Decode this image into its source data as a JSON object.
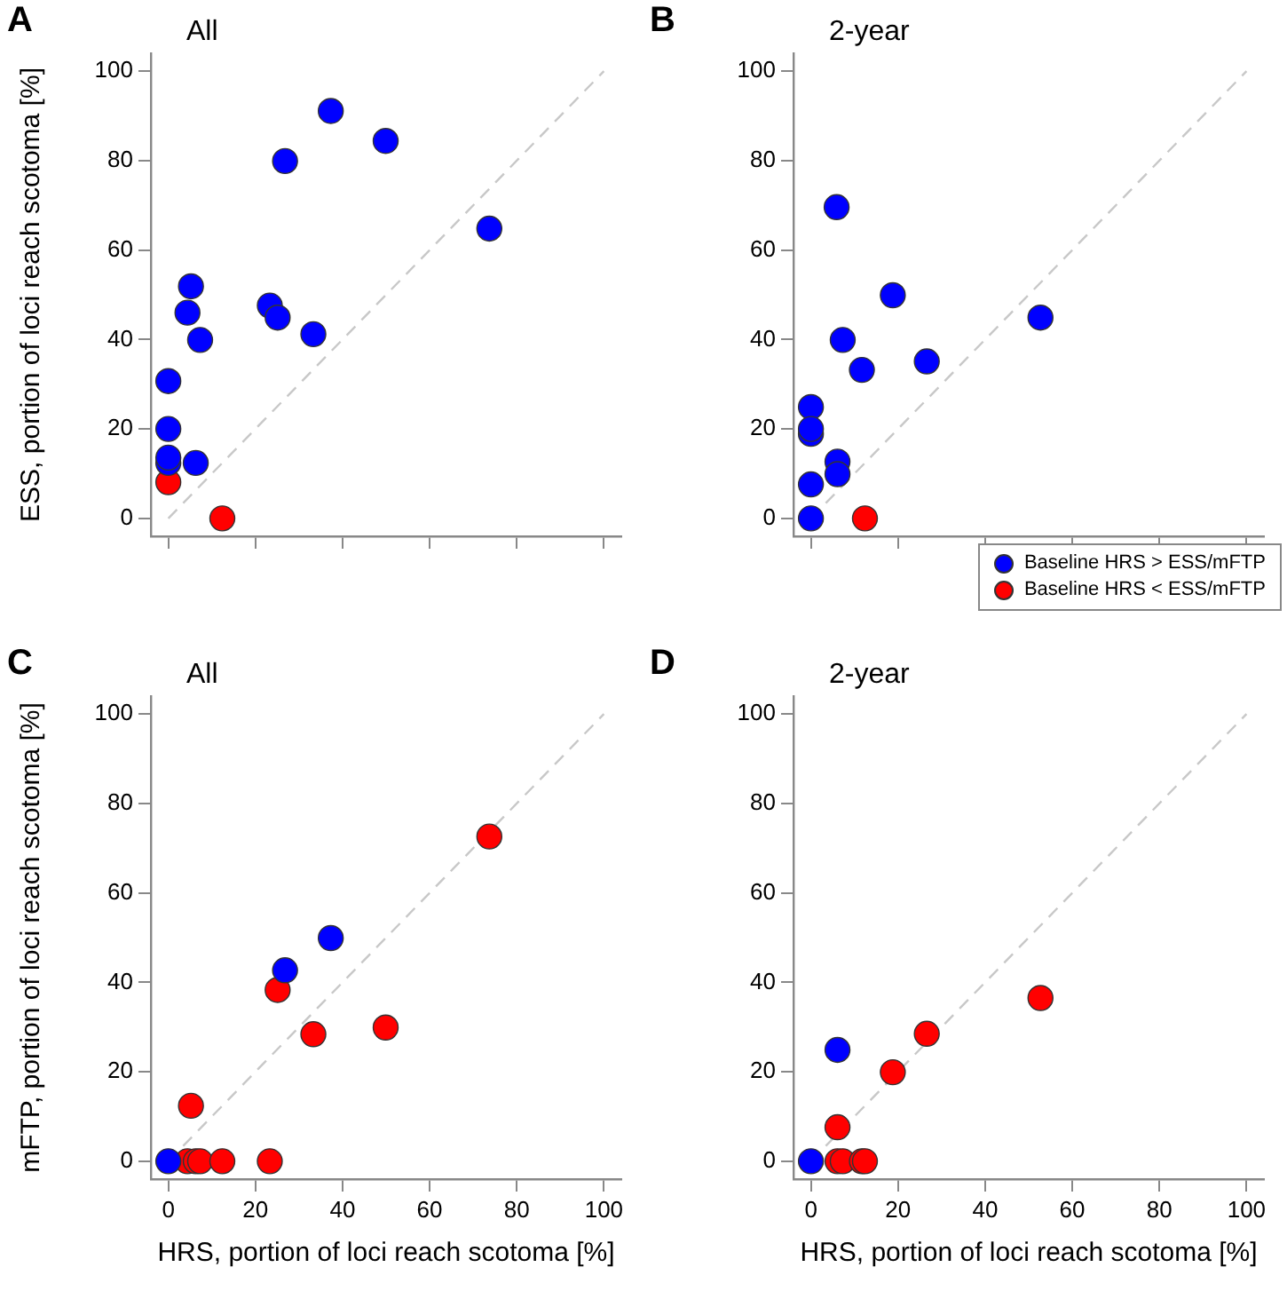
{
  "chart_data": [
    {
      "type": "scatter",
      "title": "All",
      "annotations": [
        "A"
      ],
      "ylabel": "ESS, portion of loci reach scotoma [%]",
      "xlim": [
        -4,
        104
      ],
      "ylim": [
        -4,
        104
      ],
      "xticks": [
        0,
        20,
        40,
        60,
        80,
        100
      ],
      "yticks": [
        0,
        20,
        40,
        60,
        80,
        100
      ],
      "tick_labels": "y",
      "marker": "circle",
      "grid": false,
      "series": [
        {
          "color": "#0000ff",
          "x": [
            37.3,
            49.9,
            26.8,
            73.7,
            5.2,
            4.4,
            7.3,
            23.3,
            25.1,
            33.3,
            0,
            0,
            0,
            0,
            6.3
          ],
          "values": [
            91.1,
            84.4,
            79.9,
            64.8,
            51.9,
            46,
            39.9,
            47.6,
            44.9,
            41.2,
            30.7,
            20,
            12.4,
            13.6,
            12.4
          ]
        },
        {
          "color": "#ff0000",
          "x": [
            0,
            12.4
          ],
          "values": [
            8.1,
            0
          ]
        },
        {
          "type": "line",
          "color": "#c8c8c8",
          "line_style": "dashed",
          "marker": "none",
          "x": [
            0,
            100
          ],
          "values": [
            0,
            100
          ]
        }
      ]
    },
    {
      "type": "scatter",
      "title": "2-year",
      "annotations": [
        "B"
      ],
      "xlim": [
        -4,
        104
      ],
      "ylim": [
        -4,
        104
      ],
      "xticks": [
        0,
        20,
        40,
        60,
        80,
        100
      ],
      "yticks": [
        0,
        20,
        40,
        60,
        80,
        100
      ],
      "tick_labels": "y",
      "marker": "circle",
      "grid": false,
      "legend": "bottom right",
      "series": [
        {
          "name": "Baseline HRS > ESS/mFTP",
          "color": "#0000ff",
          "x": [
            5.9,
            18.8,
            52.7,
            7.3,
            11.7,
            26.6,
            0,
            0,
            0,
            6.1,
            6.1,
            0,
            0
          ],
          "values": [
            69.6,
            49.9,
            44.9,
            39.9,
            33.2,
            35.1,
            24.9,
            18.9,
            20,
            12.7,
            9.9,
            7.6,
            0
          ]
        },
        {
          "name": "Baseline HRS < ESS/mFTP",
          "color": "#ff0000",
          "x": [
            12.4
          ],
          "values": [
            0
          ]
        },
        {
          "type": "line",
          "color": "#c8c8c8",
          "line_style": "dashed",
          "marker": "none",
          "x": [
            0,
            100
          ],
          "values": [
            0,
            100
          ]
        }
      ]
    },
    {
      "type": "scatter",
      "title": "All",
      "annotations": [
        "C"
      ],
      "xlabel": "HRS, portion of loci reach scotoma [%]",
      "ylabel": "mFTP, portion of loci reach scotoma [%]",
      "xlim": [
        -4,
        104
      ],
      "ylim": [
        -4,
        104
      ],
      "xticks": [
        0,
        20,
        40,
        60,
        80,
        100
      ],
      "yticks": [
        0,
        20,
        40,
        60,
        80,
        100
      ],
      "marker": "circle",
      "grid": false,
      "series": [
        {
          "color": "#0000ff",
          "x": [
            37.3,
            26.8,
            0
          ],
          "values": [
            49.9,
            42.7,
            0
          ]
        },
        {
          "color": "#ff0000",
          "x": [
            73.7,
            25.1,
            33.3,
            49.9,
            5.2,
            4.4,
            6.3,
            7.3,
            12.4,
            23.3
          ],
          "values": [
            72.6,
            38.3,
            28.4,
            29.9,
            12.4,
            0,
            0,
            0,
            0,
            0
          ]
        },
        {
          "type": "line",
          "color": "#c8c8c8",
          "line_style": "dashed",
          "marker": "none",
          "x": [
            0,
            100
          ],
          "values": [
            0,
            100
          ]
        }
      ]
    },
    {
      "type": "scatter",
      "title": "2-year",
      "annotations": [
        "D"
      ],
      "xlabel": "HRS, portion of loci reach scotoma [%]",
      "xlim": [
        -4,
        104
      ],
      "ylim": [
        -4,
        104
      ],
      "xticks": [
        0,
        20,
        40,
        60,
        80,
        100
      ],
      "yticks": [
        0,
        20,
        40,
        60,
        80,
        100
      ],
      "marker": "circle",
      "grid": false,
      "series": [
        {
          "color": "#0000ff",
          "x": [
            0,
            6.1
          ],
          "values": [
            0,
            24.9
          ]
        },
        {
          "color": "#ff0000",
          "x": [
            52.7,
            26.6,
            18.8,
            6.1,
            6.1,
            7.3,
            11.7,
            12.4
          ],
          "values": [
            36.5,
            28.5,
            19.9,
            7.6,
            0,
            0,
            0,
            0
          ]
        },
        {
          "type": "line",
          "color": "#c8c8c8",
          "line_style": "dashed",
          "marker": "none",
          "x": [
            0,
            100
          ],
          "values": [
            0,
            100
          ]
        }
      ]
    }
  ]
}
